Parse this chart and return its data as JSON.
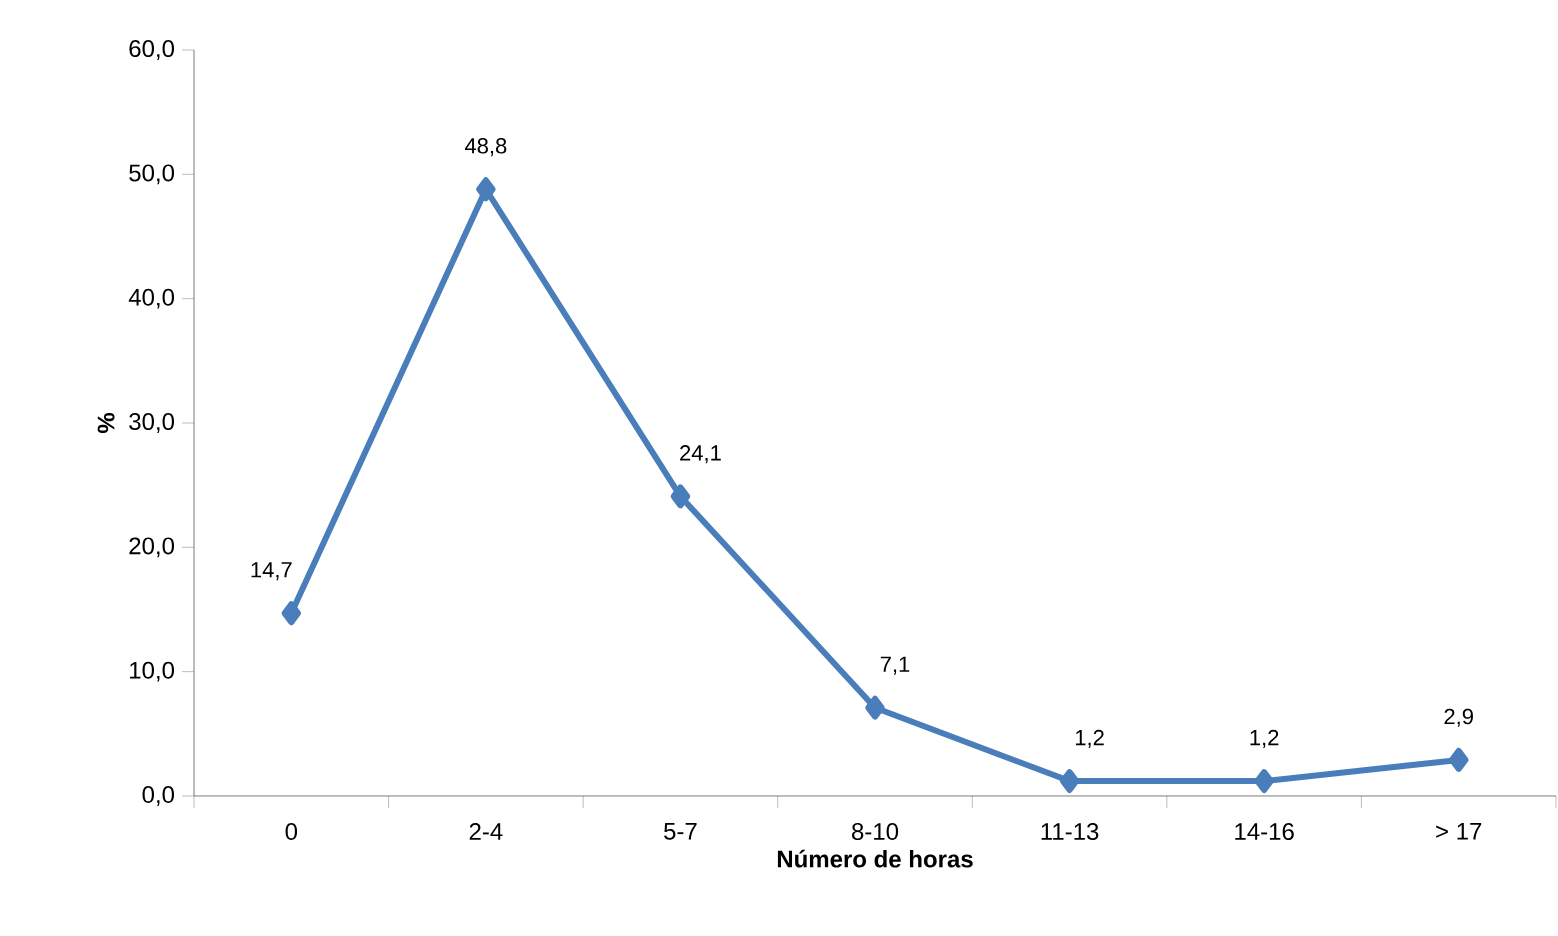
{
  "chart_data": {
    "type": "line",
    "xlabel": "Número de horas",
    "ylabel": "%",
    "categories": [
      "0",
      "2-4",
      "5-7",
      "8-10",
      "11-13",
      "14-16",
      "> 17"
    ],
    "series": [
      {
        "color": "#4a7ebb",
        "values": [
          14.7,
          48.8,
          24.1,
          7.1,
          1.2,
          1.2,
          2.9
        ],
        "value_labels": [
          "14,7",
          "48,8",
          "24,1",
          "7,1",
          "1,2",
          "1,2",
          "2,9"
        ]
      }
    ],
    "ylim": [
      0,
      60
    ],
    "yticks": [
      {
        "value": 0,
        "label": "0,0"
      },
      {
        "value": 10,
        "label": "10,0"
      },
      {
        "value": 20,
        "label": "20,0"
      },
      {
        "value": 30,
        "label": "30,0"
      },
      {
        "value": 40,
        "label": "40,0"
      },
      {
        "value": 50,
        "label": "50,0"
      },
      {
        "value": 60,
        "label": "60,0"
      }
    ],
    "marker": "diamond",
    "line_style": "solid"
  }
}
